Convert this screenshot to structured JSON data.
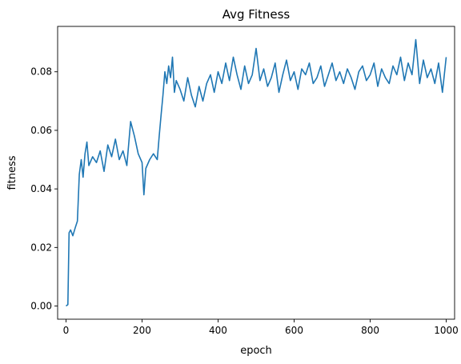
{
  "chart_data": {
    "type": "line",
    "title": "Avg Fitness",
    "xlabel": "epoch",
    "ylabel": "fitness",
    "xlim": [
      -22,
      1022
    ],
    "ylim": [
      -0.0045,
      0.0955
    ],
    "xticks": [
      0,
      200,
      400,
      600,
      800,
      1000
    ],
    "xtick_labels": [
      "0",
      "200",
      "400",
      "600",
      "800",
      "1000"
    ],
    "yticks": [
      0.0,
      0.02,
      0.04,
      0.06,
      0.08
    ],
    "ytick_labels": [
      "0.00",
      "0.02",
      "0.04",
      "0.06",
      "0.08"
    ],
    "grid": false,
    "line_color": "#1f77b4",
    "series": [
      {
        "x": [
          0,
          5,
          8,
          12,
          18,
          25,
          30,
          35,
          40,
          45,
          50,
          55,
          60,
          70,
          80,
          90,
          100,
          110,
          120,
          130,
          140,
          150,
          160,
          170,
          180,
          190,
          200,
          205,
          210,
          220,
          230,
          240,
          245,
          250,
          255,
          260,
          265,
          270,
          275,
          280,
          285,
          290,
          300,
          310,
          320,
          330,
          340,
          350,
          360,
          370,
          380,
          390,
          400,
          410,
          420,
          430,
          440,
          450,
          460,
          470,
          480,
          490,
          500,
          510,
          520,
          530,
          540,
          550,
          560,
          570,
          580,
          590,
          600,
          610,
          620,
          630,
          640,
          650,
          660,
          670,
          680,
          690,
          700,
          710,
          720,
          730,
          740,
          750,
          760,
          770,
          780,
          790,
          800,
          810,
          820,
          830,
          840,
          850,
          860,
          870,
          880,
          890,
          900,
          910,
          920,
          930,
          940,
          950,
          960,
          970,
          980,
          990,
          1000
        ],
        "values": [
          0.0,
          0.0005,
          0.025,
          0.026,
          0.024,
          0.027,
          0.029,
          0.045,
          0.05,
          0.044,
          0.052,
          0.056,
          0.048,
          0.051,
          0.049,
          0.053,
          0.046,
          0.055,
          0.051,
          0.057,
          0.05,
          0.053,
          0.048,
          0.063,
          0.058,
          0.052,
          0.049,
          0.038,
          0.047,
          0.05,
          0.052,
          0.05,
          0.058,
          0.065,
          0.072,
          0.08,
          0.076,
          0.082,
          0.078,
          0.085,
          0.073,
          0.077,
          0.074,
          0.07,
          0.078,
          0.072,
          0.068,
          0.075,
          0.07,
          0.076,
          0.079,
          0.073,
          0.08,
          0.076,
          0.083,
          0.077,
          0.085,
          0.079,
          0.074,
          0.082,
          0.076,
          0.079,
          0.088,
          0.077,
          0.081,
          0.075,
          0.078,
          0.083,
          0.073,
          0.079,
          0.084,
          0.077,
          0.08,
          0.074,
          0.081,
          0.079,
          0.083,
          0.076,
          0.078,
          0.082,
          0.075,
          0.079,
          0.083,
          0.077,
          0.08,
          0.076,
          0.081,
          0.078,
          0.074,
          0.08,
          0.082,
          0.077,
          0.079,
          0.083,
          0.075,
          0.081,
          0.078,
          0.076,
          0.082,
          0.079,
          0.085,
          0.077,
          0.083,
          0.079,
          0.091,
          0.076,
          0.084,
          0.078,
          0.081,
          0.076,
          0.083,
          0.073,
          0.085
        ]
      }
    ]
  }
}
